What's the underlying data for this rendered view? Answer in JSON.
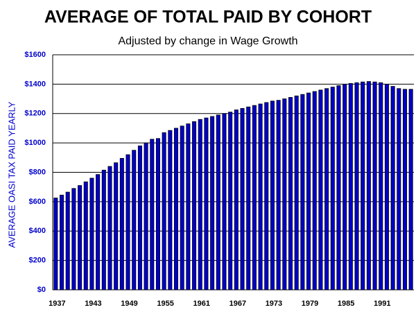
{
  "chart_data": {
    "type": "bar",
    "title": "AVERAGE OF TOTAL PAID BY COHORT",
    "subtitle": "Adjusted by change in Wage Growth",
    "y_label": "AVERAGE OASI TAX PAID YEARLY",
    "categories": [
      "1937",
      null,
      null,
      null,
      null,
      null,
      "1943",
      null,
      null,
      null,
      null,
      null,
      "1949",
      null,
      null,
      null,
      null,
      null,
      "1955",
      null,
      null,
      null,
      null,
      null,
      "1961",
      null,
      null,
      null,
      null,
      null,
      "1967",
      null,
      null,
      null,
      null,
      null,
      "1973",
      null,
      null,
      null,
      null,
      null,
      "1979",
      null,
      null,
      null,
      null,
      null,
      "1985",
      null,
      null,
      null,
      null,
      null,
      "1991",
      null,
      null,
      null,
      null,
      null
    ],
    "values": [
      625,
      645,
      665,
      690,
      710,
      735,
      760,
      785,
      815,
      840,
      865,
      895,
      920,
      950,
      980,
      1000,
      1025,
      1030,
      1070,
      1085,
      1100,
      1115,
      1130,
      1145,
      1160,
      1170,
      1180,
      1190,
      1200,
      1210,
      1225,
      1235,
      1245,
      1255,
      1265,
      1275,
      1285,
      1290,
      1300,
      1310,
      1320,
      1330,
      1340,
      1350,
      1360,
      1370,
      1380,
      1390,
      1400,
      1405,
      1410,
      1415,
      1418,
      1415,
      1410,
      1400,
      1385,
      1370,
      1365,
      1365
    ],
    "color": "#0000cc",
    "ylim": [
      0,
      1600
    ],
    "yticks": [
      {
        "value": 0,
        "label": "$0"
      },
      {
        "value": 200,
        "label": "$200"
      },
      {
        "value": 400,
        "label": "$400"
      },
      {
        "value": 600,
        "label": "$600"
      },
      {
        "value": 800,
        "label": "$800"
      },
      {
        "value": 1000,
        "label": "$1000"
      },
      {
        "value": 1200,
        "label": "$1200"
      },
      {
        "value": 1400,
        "label": "$1400"
      },
      {
        "value": 1600,
        "label": "$1600"
      }
    ],
    "grid": true
  }
}
